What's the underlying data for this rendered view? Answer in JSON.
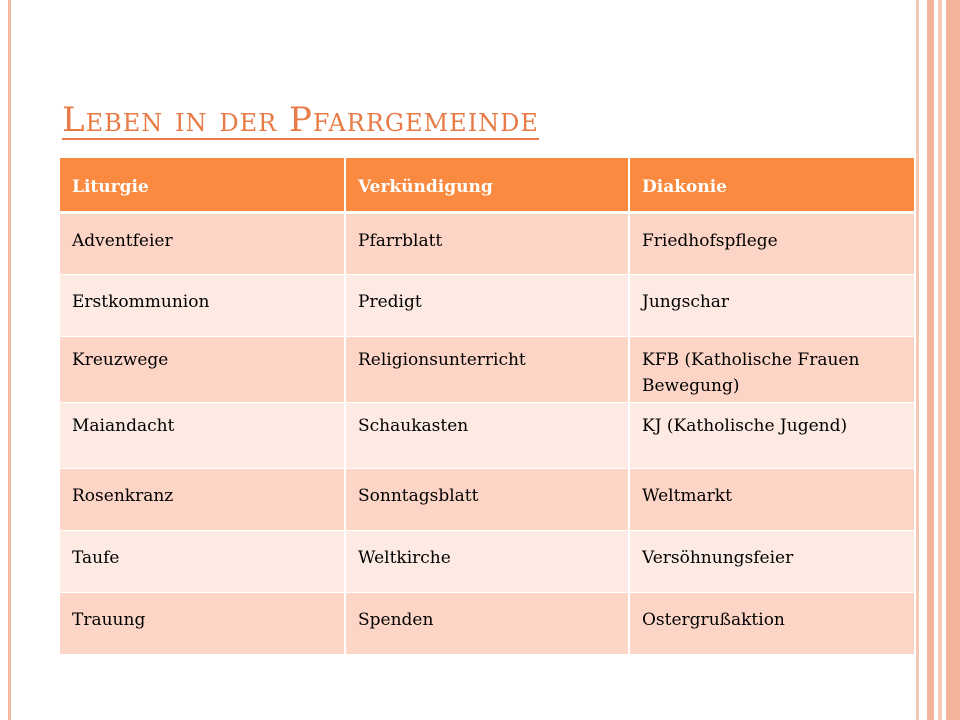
{
  "slide": {
    "title": "Leben in der Pfarrgemeinde"
  },
  "table": {
    "headers": [
      "Liturgie",
      "Verkündigung",
      "Diakonie"
    ],
    "rows": [
      [
        "Adventfeier",
        "Pfarrblatt",
        "Friedhofspflege"
      ],
      [
        "Erstkommunion",
        "Predigt",
        "Jungschar"
      ],
      [
        "Kreuzwege",
        "Religionsunterricht",
        "KFB (Katholische Frauen Bewegung)"
      ],
      [
        "Maiandacht",
        "Schaukasten",
        "KJ (Katholische Jugend)"
      ],
      [
        "Rosenkranz",
        "Sonntagsblatt",
        "Weltmarkt"
      ],
      [
        "Taufe",
        "Weltkirche",
        "Versöhnungsfeier"
      ],
      [
        "Trauung",
        "Spenden",
        "Ostergrußaktion"
      ]
    ]
  },
  "colors": {
    "accent": "#e87a45",
    "header_fill": "#fa8a3f",
    "row_dark": "#fdd5c6",
    "row_light": "#fdeae3"
  }
}
